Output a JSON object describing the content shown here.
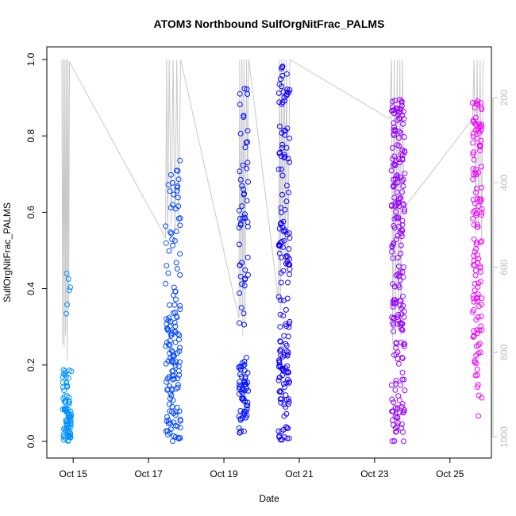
{
  "chart_data": {
    "type": "scatter",
    "title": "ATOM3 Northbound SulfOrgNitFrac_PALMS",
    "xlabel": "Date",
    "ylabel": "SulfOrgNitFrac_PALMS",
    "x_ticks": [
      "Oct 15",
      "Oct 17",
      "Oct 19",
      "Oct 21",
      "Oct 23",
      "Oct 25"
    ],
    "y_ticks": [
      "0.0",
      "0.2",
      "0.4",
      "0.6",
      "0.8",
      "1.0"
    ],
    "y_right_ticks": [
      "200",
      "400",
      "600",
      "800",
      "1000"
    ],
    "ylim": [
      0,
      1
    ],
    "y_right_reversed": true,
    "xlim_days": [
      14.3,
      26.1
    ],
    "x_tick_days": [
      15,
      17,
      19,
      21,
      23,
      25
    ],
    "y_right_lim": [
      110,
      1010
    ],
    "grid": false,
    "point_style": "open-circle",
    "color_gradient": [
      "#00a0ff",
      "#0000ff",
      "#ff00ff"
    ],
    "secondary_color": "#c8c8c8",
    "clusters": [
      {
        "x": [
          14.72,
          14.95
        ],
        "n": 90,
        "dist": [
          [
            0.0,
            0.12,
            0.8
          ],
          [
            0.12,
            0.2,
            0.15
          ],
          [
            0.33,
            0.47,
            0.05
          ]
        ]
      },
      {
        "x": [
          17.45,
          17.85
        ],
        "n": 150,
        "dist": [
          [
            0.0,
            0.35,
            0.75
          ],
          [
            0.35,
            0.75,
            0.25
          ]
        ]
      },
      {
        "x": [
          19.4,
          19.65
        ],
        "n": 110,
        "dist": [
          [
            0.02,
            0.22,
            0.55
          ],
          [
            0.3,
            0.95,
            0.45
          ]
        ]
      },
      {
        "x": [
          20.45,
          20.75
        ],
        "n": 170,
        "dist": [
          [
            0.0,
            0.25,
            0.35
          ],
          [
            0.25,
            0.99,
            0.65
          ]
        ]
      },
      {
        "x": [
          23.45,
          23.8
        ],
        "n": 220,
        "dist": [
          [
            0.0,
            0.3,
            0.3
          ],
          [
            0.3,
            0.9,
            0.7
          ]
        ]
      },
      {
        "x": [
          25.6,
          25.85
        ],
        "n": 130,
        "dist": [
          [
            0.05,
            0.3,
            0.25
          ],
          [
            0.3,
            0.9,
            0.75
          ]
        ]
      }
    ],
    "pressure_profile": [
      [
        14.7,
        110
      ],
      [
        14.72,
        780
      ],
      [
        14.74,
        110
      ],
      [
        14.76,
        790
      ],
      [
        14.78,
        110
      ],
      [
        14.8,
        760
      ],
      [
        14.82,
        110
      ],
      [
        14.84,
        820
      ],
      [
        14.86,
        110
      ],
      [
        14.88,
        700
      ],
      [
        14.9,
        115
      ],
      [
        17.45,
        530
      ],
      [
        17.48,
        110
      ],
      [
        17.51,
        520
      ],
      [
        17.55,
        110
      ],
      [
        17.6,
        500
      ],
      [
        17.65,
        110
      ],
      [
        17.7,
        520
      ],
      [
        17.75,
        110
      ],
      [
        17.8,
        500
      ],
      [
        17.85,
        110
      ],
      [
        19.4,
        720
      ],
      [
        19.42,
        110
      ],
      [
        19.45,
        700
      ],
      [
        19.48,
        110
      ],
      [
        19.5,
        760
      ],
      [
        19.53,
        110
      ],
      [
        19.56,
        740
      ],
      [
        19.6,
        110
      ],
      [
        19.63,
        420
      ],
      [
        19.66,
        110
      ],
      [
        20.45,
        680
      ],
      [
        20.48,
        110
      ],
      [
        20.5,
        700
      ],
      [
        20.53,
        110
      ],
      [
        20.56,
        560
      ],
      [
        20.6,
        110
      ],
      [
        20.63,
        600
      ],
      [
        20.66,
        110
      ],
      [
        20.7,
        580
      ],
      [
        20.75,
        110
      ],
      [
        23.4,
        250
      ],
      [
        23.45,
        110
      ],
      [
        23.48,
        780
      ],
      [
        23.52,
        110
      ],
      [
        23.55,
        760
      ],
      [
        23.6,
        110
      ],
      [
        23.63,
        740
      ],
      [
        23.67,
        110
      ],
      [
        23.7,
        760
      ],
      [
        23.74,
        110
      ],
      [
        23.78,
        460
      ],
      [
        25.6,
        250
      ],
      [
        25.64,
        110
      ],
      [
        25.68,
        520
      ],
      [
        25.72,
        110
      ],
      [
        25.76,
        500
      ],
      [
        25.8,
        110
      ],
      [
        25.84,
        540
      ],
      [
        25.88,
        110
      ]
    ]
  }
}
